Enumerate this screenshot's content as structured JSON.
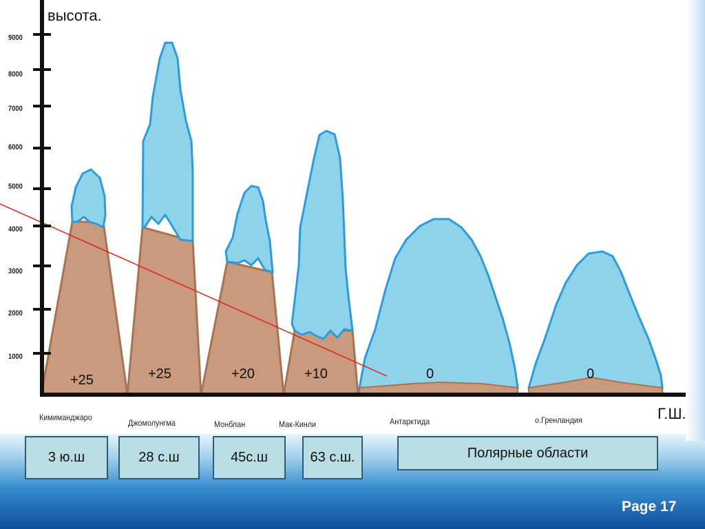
{
  "axes": {
    "y_label": "высота.",
    "x_label": "Г.Ш.",
    "y_ticks": [
      "1000",
      "2000",
      "3000",
      "4000",
      "5000",
      "6000",
      "7000",
      "8000",
      "9000"
    ]
  },
  "mountains": [
    {
      "name": "Кимиманджаро",
      "temp": "+25"
    },
    {
      "name": "Джомолунгма",
      "temp": "+25"
    },
    {
      "name": "Монблан",
      "temp": "+20"
    },
    {
      "name": "Мак-Кинли",
      "temp": "+10"
    },
    {
      "name": "Антарктида",
      "temp": "0"
    },
    {
      "name": "о.Гренландия",
      "temp": "0"
    }
  ],
  "latitudes": [
    "3 ю.ш",
    "28 с.ш",
    "45с.ш",
    "63 с.ш.",
    "Полярные области"
  ],
  "footer": {
    "page": "Page 17"
  },
  "colors": {
    "rock": "#c99a7e",
    "rock_edge": "#a8734e",
    "ice": "#8fd3ea",
    "ice_edge": "#2a9be0",
    "line": "#e0221c"
  }
}
